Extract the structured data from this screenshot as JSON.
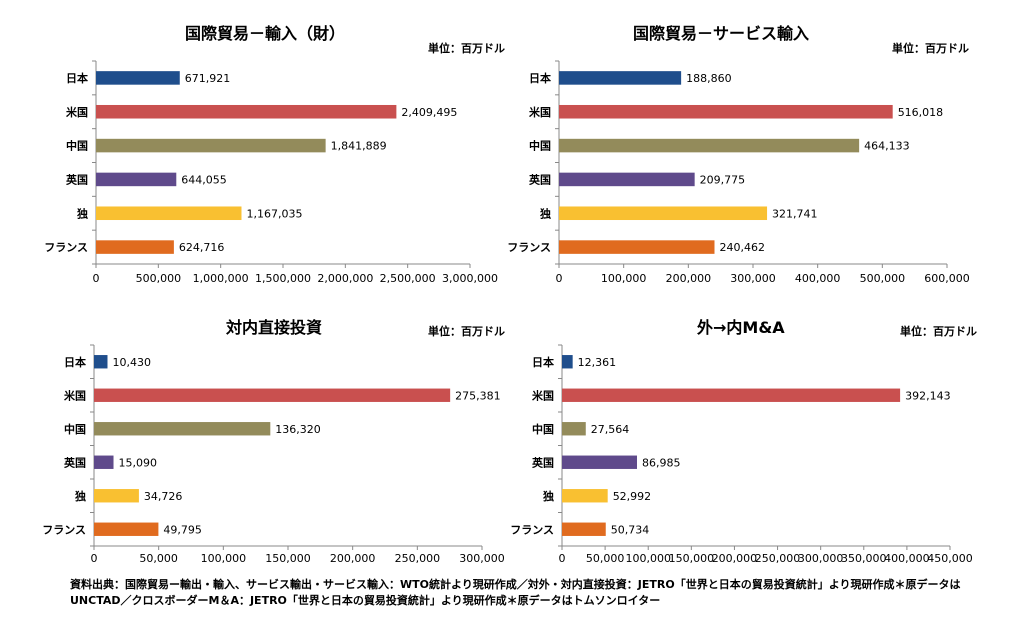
{
  "chart_data": [
    {
      "type": "bar",
      "title": "国際貿易－輸入（財）",
      "unit": "単位：百万ドル",
      "categories": [
        "日本",
        "米国",
        "中国",
        "英国",
        "独",
        "フランス"
      ],
      "values": [
        671921,
        2409495,
        1841889,
        644055,
        1167035,
        624716
      ],
      "value_labels": [
        "671,921",
        "2,409,495",
        "1,841,889",
        "644,055",
        "1,167,035",
        "624,716"
      ],
      "xlim": [
        0,
        3000000
      ],
      "ticks": [
        "0",
        "500,000",
        "1,000,000",
        "1,500,000",
        "2,000,000",
        "2,500,000",
        "3,000,000"
      ]
    },
    {
      "type": "bar",
      "title": "国際貿易－サービス輸入",
      "unit": "単位：百万ドル",
      "categories": [
        "日本",
        "米国",
        "中国",
        "英国",
        "独",
        "フランス"
      ],
      "values": [
        188860,
        516018,
        464133,
        209775,
        321741,
        240462
      ],
      "value_labels": [
        "188,860",
        "516,018",
        "464,133",
        "209,775",
        "321,741",
        "240,462"
      ],
      "xlim": [
        0,
        600000
      ],
      "ticks": [
        "0",
        "100,000",
        "200,000",
        "300,000",
        "400,000",
        "500,000",
        "600,000"
      ]
    },
    {
      "type": "bar",
      "title": "対内直接投資",
      "unit": "単位：百万ドル",
      "categories": [
        "日本",
        "米国",
        "中国",
        "英国",
        "独",
        "フランス"
      ],
      "values": [
        10430,
        275381,
        136320,
        15090,
        34726,
        49795
      ],
      "value_labels": [
        "10,430",
        "275,381",
        "136,320",
        "15,090",
        "34,726",
        "49,795"
      ],
      "xlim": [
        0,
        300000
      ],
      "ticks": [
        "0",
        "50,000",
        "100,000",
        "150,000",
        "200,000",
        "250,000",
        "300,000"
      ]
    },
    {
      "type": "bar",
      "title": "外→内M&A",
      "unit": "単位：百万ドル",
      "categories": [
        "日本",
        "米国",
        "中国",
        "英国",
        "独",
        "フランス"
      ],
      "values": [
        12361,
        392143,
        27564,
        86985,
        52992,
        50734
      ],
      "value_labels": [
        "12,361",
        "392,143",
        "27,564",
        "86,985",
        "52,992",
        "50,734"
      ],
      "xlim": [
        0,
        450000
      ],
      "ticks": [
        "0",
        "50,000",
        "100,000",
        "150,000",
        "200,000",
        "250,000",
        "300,000",
        "350,000",
        "400,000",
        "450,000"
      ]
    }
  ],
  "bar_colors": [
    "#1f4e8c",
    "#c9504f",
    "#938b5b",
    "#5f4a8b",
    "#f9c031",
    "#e06b1f"
  ],
  "source_note": "資料出典：国際貿易ー輸出・輸入、サービス輸出・サービス輸入：WTO統計より現研作成／対外・対内直接投資：JETRO「世界と日本の貿易投資統計」より現研作成＊原データはUNCTAD／クロスボーダーM＆A：JETRO「世界と日本の貿易投資統計」より現研作成＊原データはトムソンロイター"
}
